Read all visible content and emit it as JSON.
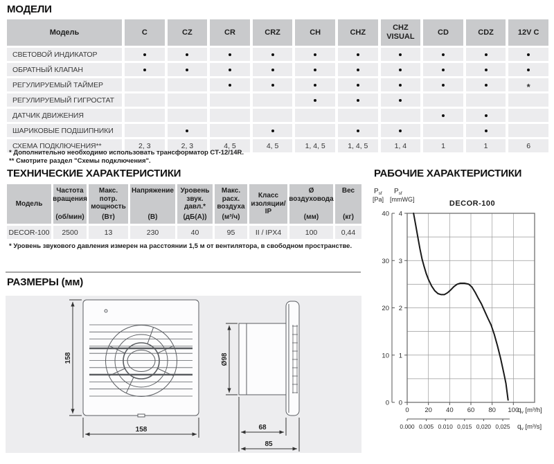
{
  "models": {
    "title": "МОДЕЛИ",
    "header_label": "Модель",
    "columns": [
      "C",
      "CZ",
      "CR",
      "CRZ",
      "CH",
      "CHZ",
      "CHZ VISUAL",
      "CD",
      "CDZ",
      "12V C"
    ],
    "rows": [
      {
        "label": "СВЕТОВОЙ ИНДИКАТОР",
        "cells": [
          "•",
          "•",
          "•",
          "•",
          "•",
          "•",
          "•",
          "•",
          "•",
          "•"
        ]
      },
      {
        "label": "ОБРАТНЫЙ КЛАПАН",
        "cells": [
          "•",
          "•",
          "•",
          "•",
          "•",
          "•",
          "•",
          "•",
          "•",
          "•"
        ]
      },
      {
        "label": "РЕГУЛИРУЕМЫЙ ТАЙМЕР",
        "cells": [
          "",
          "",
          "•",
          "•",
          "•",
          "•",
          "•",
          "•",
          "•",
          "*"
        ]
      },
      {
        "label": "РЕГУЛИРУЕМЫЙ ГИГРОСТАТ",
        "cells": [
          "",
          "",
          "",
          "",
          "•",
          "•",
          "•",
          "",
          "",
          ""
        ]
      },
      {
        "label": "ДАТЧИК ДВИЖЕНИЯ",
        "cells": [
          "",
          "",
          "",
          "",
          "",
          "",
          "",
          "•",
          "•",
          ""
        ]
      },
      {
        "label": "ШАРИКОВЫЕ ПОДШИПНИКИ",
        "cells": [
          "",
          "•",
          "",
          "•",
          "",
          "•",
          "•",
          "",
          "•",
          ""
        ]
      },
      {
        "label": "СХЕМА ПОДКЛЮЧЕНИЯ**",
        "cells": [
          "2, 3",
          "2, 3",
          "4, 5",
          "4, 5",
          "1, 4, 5",
          "1, 4, 5",
          "1, 4",
          "1",
          "1",
          "6"
        ]
      }
    ],
    "footnotes": [
      "* Дополнительно необходимо использовать трансформатор CT-12/14R.",
      "** Смотрите раздел \"Схемы подключения\"."
    ]
  },
  "tech": {
    "title": "ТЕХНИЧЕСКИЕ ХАРАКТЕРИСТИКИ",
    "headers": [
      {
        "name": "Модель",
        "unit": ""
      },
      {
        "name": "Частота вращения",
        "unit": "(об/мин)"
      },
      {
        "name": "Макс. потр. мощность",
        "unit": "(Вт)"
      },
      {
        "name": "Напряжение",
        "unit": "(В)"
      },
      {
        "name": "Уровень звук. давл.*",
        "unit": "(дБ(А))"
      },
      {
        "name": "Макс. расх. воздуха",
        "unit": "(м³/ч)"
      },
      {
        "name": "Класс изоляции/ IP",
        "unit": ""
      },
      {
        "name": "Ø воздуховода",
        "unit": "(мм)"
      },
      {
        "name": "Вес",
        "unit": "(кг)"
      }
    ],
    "row": [
      "DECOR-100",
      "2500",
      "13",
      "230",
      "40",
      "95",
      "II / IPX4",
      "100",
      "0,44"
    ],
    "footnote": "* Уровень звукового давления измерен на расстоянии 1,5 м от вентилятора, в свободном пространстве."
  },
  "dimensions": {
    "title": "РАЗМЕРЫ (мм)",
    "front_view": {
      "height": "158",
      "width": "158"
    },
    "side_view": {
      "diameter": "Ø98",
      "depth": "68",
      "total_depth": "85"
    }
  },
  "performance": {
    "title": "РАБОЧИЕ ХАРАКТЕРИСТИКИ"
  },
  "chart_data": {
    "type": "line",
    "title": "DECOR-100",
    "grid": true,
    "y_axis_pa": {
      "sym": "P",
      "sub": "sf",
      "unit": "[Pa]",
      "ticks": [
        0,
        10,
        20,
        30,
        40
      ],
      "range": [
        0,
        40
      ]
    },
    "y_axis_mmwg": {
      "sym": "P",
      "sub": "sf",
      "unit": "[mmWG]",
      "ticks": [
        0,
        1,
        2,
        3,
        4
      ],
      "range": [
        0,
        4
      ],
      "grid_step": 0.5
    },
    "x_axis": {
      "sym": "q",
      "sub": "v",
      "unit": "[m³/h]",
      "ticks": [
        0,
        20,
        40,
        60,
        80,
        100
      ],
      "range": [
        0,
        120
      ],
      "grid_step": 20
    },
    "x_axis_secondary": {
      "sym": "q",
      "sub": "v",
      "unit": "[m³/s]",
      "tick_labels": [
        "0.000",
        "0.005",
        "0.010",
        "0,015",
        "0,020",
        "0,025"
      ],
      "tick_positions_m3h": [
        0,
        18,
        36,
        54,
        72,
        90
      ]
    },
    "series": [
      {
        "name": "DECOR-100",
        "points": [
          [
            6,
            4.0
          ],
          [
            8,
            3.75
          ],
          [
            10,
            3.5
          ],
          [
            12,
            3.25
          ],
          [
            14,
            3.03
          ],
          [
            16,
            2.87
          ],
          [
            18,
            2.72
          ],
          [
            20,
            2.6
          ],
          [
            23,
            2.46
          ],
          [
            26,
            2.36
          ],
          [
            29,
            2.3
          ],
          [
            32,
            2.28
          ],
          [
            35,
            2.28
          ],
          [
            38,
            2.32
          ],
          [
            41,
            2.38
          ],
          [
            44,
            2.45
          ],
          [
            47,
            2.5
          ],
          [
            50,
            2.52
          ],
          [
            54,
            2.52
          ],
          [
            58,
            2.5
          ],
          [
            61,
            2.44
          ],
          [
            64,
            2.33
          ],
          [
            67,
            2.2
          ],
          [
            70,
            2.08
          ],
          [
            73,
            1.93
          ],
          [
            76,
            1.78
          ],
          [
            79,
            1.64
          ],
          [
            82,
            1.44
          ],
          [
            85,
            1.2
          ],
          [
            88,
            0.93
          ],
          [
            91,
            0.62
          ],
          [
            93,
            0.4
          ],
          [
            95,
            0.05
          ]
        ]
      }
    ]
  },
  "colors": {
    "header_bg": "#c9cacc",
    "row_bg": "#ececee",
    "panel_bg": "#ededef",
    "curve": "#191919",
    "grid": "#9a9a9a"
  }
}
